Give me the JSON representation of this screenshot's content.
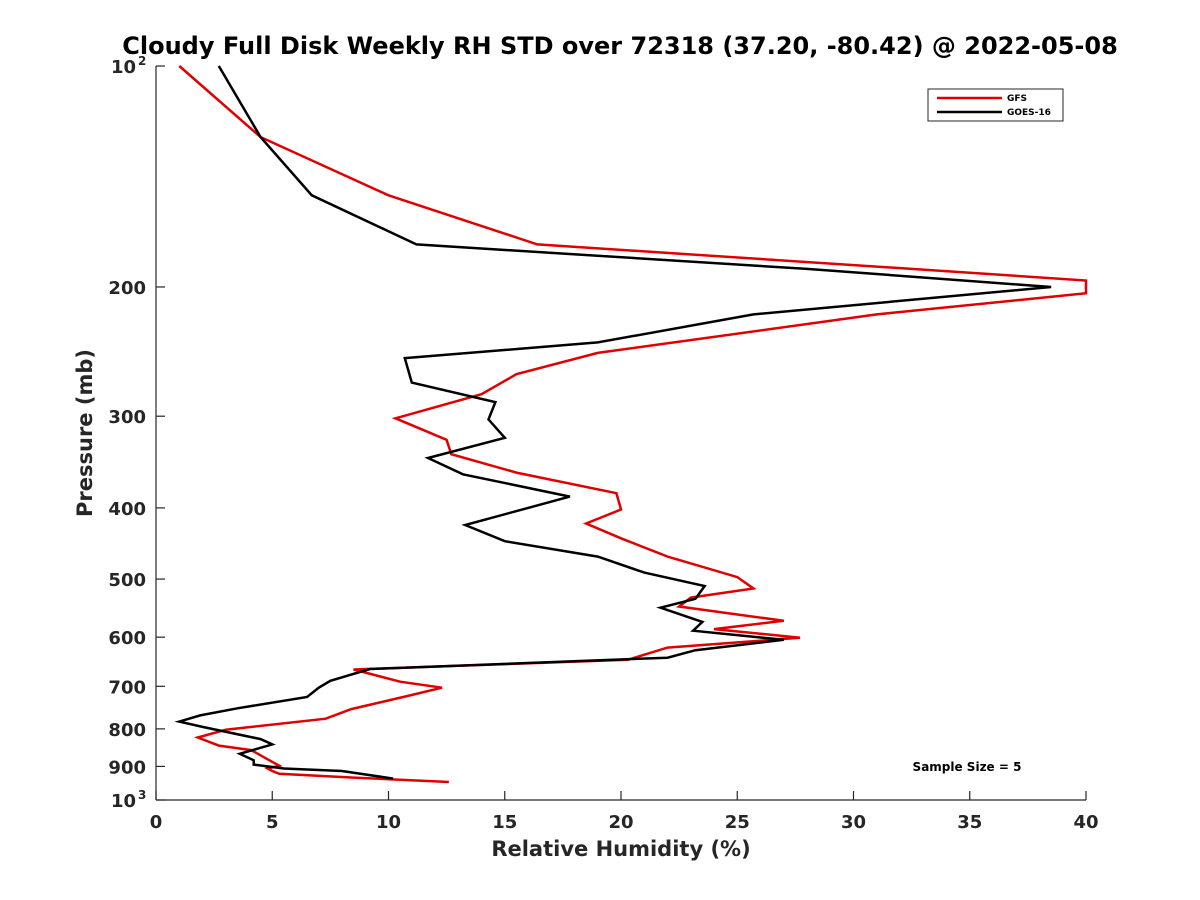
{
  "chart_data": {
    "type": "line",
    "title": "Cloudy Full Disk Weekly RH STD over 72318 (37.20, -80.42) @ 2022-05-08",
    "xlabel": "Relative Humidity (%)",
    "ylabel": "Pressure (mb)",
    "xlim": [
      0,
      40
    ],
    "ylim": [
      100,
      1000
    ],
    "yscale": "log",
    "y_reversed": true,
    "grid": false,
    "legend_position": "top-right",
    "x_ticks": [
      "0",
      "5",
      "10",
      "15",
      "20",
      "25",
      "30",
      "35",
      "40"
    ],
    "y_ticks": [
      {
        "value": 100,
        "label": "10",
        "sup": "2"
      },
      {
        "value": 200,
        "label": "200",
        "sup": ""
      },
      {
        "value": 300,
        "label": "300",
        "sup": ""
      },
      {
        "value": 400,
        "label": "400",
        "sup": ""
      },
      {
        "value": 500,
        "label": "500",
        "sup": ""
      },
      {
        "value": 600,
        "label": "600",
        "sup": ""
      },
      {
        "value": 700,
        "label": "700",
        "sup": ""
      },
      {
        "value": 800,
        "label": "800",
        "sup": ""
      },
      {
        "value": 900,
        "label": "900",
        "sup": ""
      },
      {
        "value": 1000,
        "label": "10",
        "sup": "3"
      }
    ],
    "annotation": "Sample Size = 5",
    "series": [
      {
        "name": "GFS",
        "color": "#e00000",
        "points": [
          [
            1.0,
            100
          ],
          [
            4.5,
            125
          ],
          [
            10.0,
            150
          ],
          [
            16.4,
            175
          ],
          [
            32.5,
            189
          ],
          [
            40.0,
            196
          ],
          [
            40.0,
            204
          ],
          [
            31.0,
            218
          ],
          [
            19.0,
            246
          ],
          [
            15.5,
            263
          ],
          [
            14.0,
            280
          ],
          [
            10.3,
            302
          ],
          [
            12.5,
            323
          ],
          [
            12.7,
            338
          ],
          [
            15.5,
            358
          ],
          [
            19.8,
            382
          ],
          [
            20.0,
            402
          ],
          [
            18.5,
            420
          ],
          [
            20.0,
            440
          ],
          [
            22.0,
            466
          ],
          [
            25.0,
            497
          ],
          [
            25.7,
            515
          ],
          [
            23.0,
            530
          ],
          [
            22.5,
            545
          ],
          [
            27.0,
            570
          ],
          [
            24.0,
            585
          ],
          [
            27.7,
            601
          ],
          [
            22.0,
            620
          ],
          [
            20.3,
            644
          ],
          [
            8.5,
            664
          ],
          [
            10.5,
            690
          ],
          [
            12.3,
            703
          ],
          [
            10.7,
            723
          ],
          [
            8.4,
            752
          ],
          [
            7.3,
            775
          ],
          [
            3.0,
            802
          ],
          [
            1.8,
            822
          ],
          [
            2.7,
            843
          ],
          [
            4.1,
            855
          ],
          [
            4.8,
            880
          ],
          [
            5.3,
            898
          ],
          [
            4.8,
            906
          ],
          [
            5.0,
            913
          ],
          [
            5.3,
            921
          ],
          [
            8.5,
            932
          ],
          [
            12.6,
            945
          ]
        ]
      },
      {
        "name": "GOES-16",
        "color": "#000000",
        "points": [
          [
            2.7,
            100
          ],
          [
            4.5,
            125
          ],
          [
            6.7,
            150
          ],
          [
            11.2,
            175
          ],
          [
            28.0,
            189
          ],
          [
            38.5,
            200
          ],
          [
            25.7,
            218
          ],
          [
            19.0,
            238
          ],
          [
            10.7,
            250
          ],
          [
            11.0,
            270
          ],
          [
            14.6,
            287
          ],
          [
            14.3,
            303
          ],
          [
            15.0,
            321
          ],
          [
            11.7,
            342
          ],
          [
            13.2,
            360
          ],
          [
            17.8,
            386
          ],
          [
            13.3,
            422
          ],
          [
            15.0,
            444
          ],
          [
            19.0,
            466
          ],
          [
            21.0,
            490
          ],
          [
            23.6,
            511
          ],
          [
            23.2,
            532
          ],
          [
            21.7,
            547
          ],
          [
            23.5,
            572
          ],
          [
            23.1,
            588
          ],
          [
            27.0,
            605
          ],
          [
            23.2,
            625
          ],
          [
            22.0,
            640
          ],
          [
            9.2,
            663
          ],
          [
            7.5,
            688
          ],
          [
            7.0,
            703
          ],
          [
            6.5,
            724
          ],
          [
            3.5,
            750
          ],
          [
            1.9,
            767
          ],
          [
            1.0,
            782
          ],
          [
            2.0,
            795
          ],
          [
            4.5,
            826
          ],
          [
            5.0,
            840
          ],
          [
            3.6,
            865
          ],
          [
            4.2,
            883
          ],
          [
            4.2,
            895
          ],
          [
            5.5,
            906
          ],
          [
            8.0,
            913
          ],
          [
            10.2,
            935
          ]
        ]
      }
    ]
  }
}
